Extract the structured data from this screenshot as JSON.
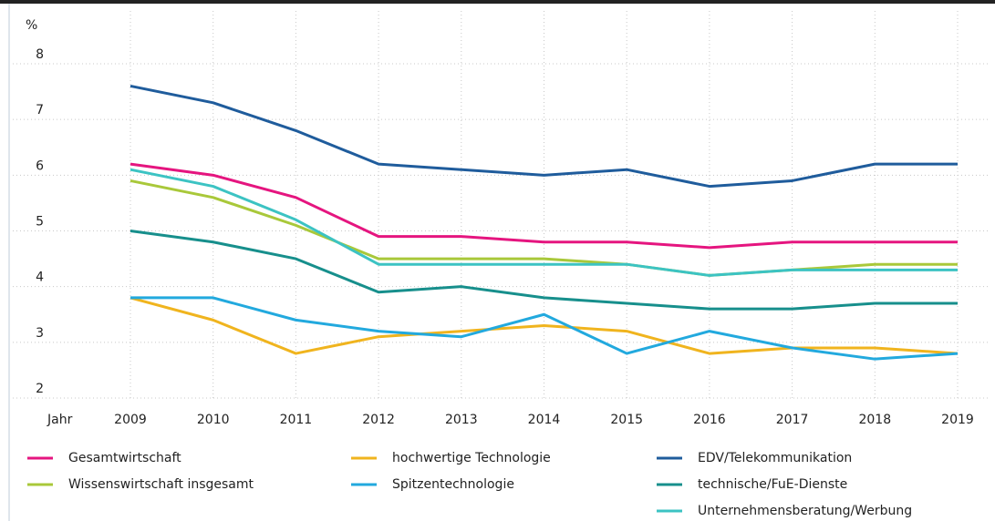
{
  "chart_data": {
    "type": "line",
    "ylabel": "%",
    "xlabel": "Jahr",
    "categories": [
      "2009",
      "2010",
      "2011",
      "2012",
      "2013",
      "2014",
      "2015",
      "2016",
      "2017",
      "2018",
      "2019"
    ],
    "ylim": [
      2,
      8
    ],
    "yticks": [
      2,
      3,
      4,
      5,
      6,
      7,
      8
    ],
    "grid": true,
    "series": [
      {
        "name": "Gesamtwirtschaft",
        "color": "#e5157f",
        "values": [
          6.2,
          6.0,
          5.6,
          4.9,
          4.9,
          4.8,
          4.8,
          4.7,
          4.8,
          4.8,
          4.8
        ]
      },
      {
        "name": "hochwertige Technologie",
        "color": "#f0b41e",
        "values": [
          3.8,
          3.4,
          2.8,
          3.1,
          3.2,
          3.3,
          3.2,
          2.8,
          2.9,
          2.9,
          2.8
        ]
      },
      {
        "name": "EDV/Telekommunikation",
        "color": "#1f5c9c",
        "values": [
          7.6,
          7.3,
          6.8,
          6.2,
          6.1,
          6.0,
          6.1,
          5.8,
          5.9,
          6.2,
          6.2
        ]
      },
      {
        "name": "Wissenswirtschaft insgesamt",
        "color": "#a9c83a",
        "values": [
          5.9,
          5.6,
          5.1,
          4.5,
          4.5,
          4.5,
          4.4,
          4.2,
          4.3,
          4.4,
          4.4
        ]
      },
      {
        "name": "Spitzentechnologie",
        "color": "#22a9de",
        "values": [
          3.8,
          3.8,
          3.4,
          3.2,
          3.1,
          3.5,
          2.8,
          3.2,
          2.9,
          2.7,
          2.8
        ]
      },
      {
        "name": "technische/FuE-Dienste",
        "color": "#178f8c",
        "values": [
          5.0,
          4.8,
          4.5,
          3.9,
          4.0,
          3.8,
          3.7,
          3.6,
          3.6,
          3.7,
          3.7
        ]
      },
      {
        "name": "Unternehmensberatung/Werbung",
        "color": "#3cc3c3",
        "values": [
          6.1,
          5.8,
          5.2,
          4.4,
          4.4,
          4.4,
          4.4,
          4.2,
          4.3,
          4.3,
          4.3
        ]
      }
    ]
  }
}
